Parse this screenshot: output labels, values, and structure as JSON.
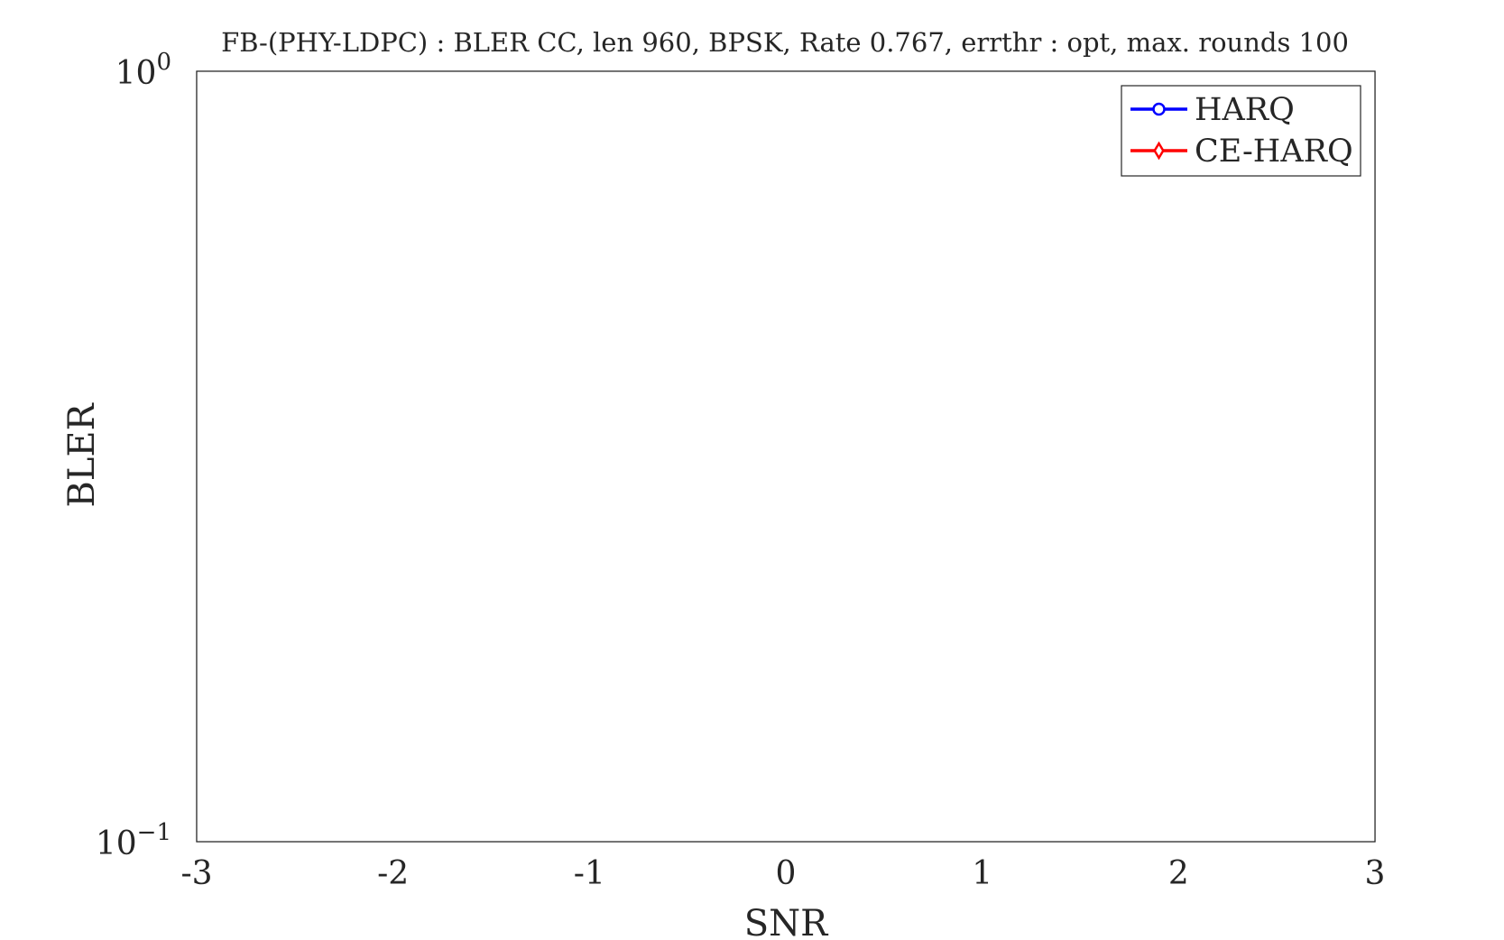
{
  "chart_data": {
    "type": "line",
    "title": "FB-(PHY-LDPC) : BLER CC, len 960, BPSK, Rate 0.767, errthr : opt, max. rounds 100",
    "xlabel": "SNR",
    "ylabel": "BLER",
    "xlim": [
      -3,
      3
    ],
    "ylim": [
      0.1,
      1
    ],
    "yscale": "log",
    "grid": true,
    "x_ticks": [
      -3,
      -2,
      -1,
      0,
      1,
      2,
      3
    ],
    "x_tick_labels": [
      "-3",
      "-2",
      "-1",
      "0",
      "1",
      "2",
      "3"
    ],
    "y_ticks": [
      {
        "value": 1,
        "base": "10",
        "exponent": "0"
      },
      {
        "value": 0.1,
        "base": "10",
        "exponent": "−1"
      }
    ],
    "legend_position": "top-right",
    "series": [
      {
        "name": "HARQ",
        "color": "#0000ff",
        "marker": "circle",
        "x": [],
        "y": []
      },
      {
        "name": "CE-HARQ",
        "color": "#ff0000",
        "marker": "diamond",
        "x": [],
        "y": []
      }
    ]
  }
}
